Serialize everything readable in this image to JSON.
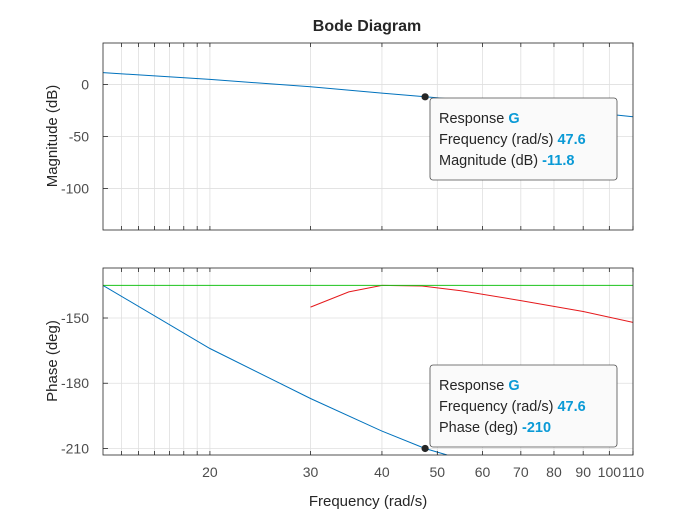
{
  "chart_data": [
    {
      "type": "line",
      "title": "Bode Diagram",
      "xlabel": "Frequency (rad/s)",
      "ylabel": "Magnitude (dB)",
      "xscale": "log",
      "xlim": [
        13,
        110
      ],
      "ylim": [
        -140,
        40
      ],
      "yticks": [
        0,
        -50,
        -100
      ],
      "grid": true,
      "series": [
        {
          "color": "#0072bd",
          "x": [
            13,
            20,
            30,
            40,
            47.6,
            60,
            80,
            110
          ],
          "y": [
            11.5,
            5,
            -2.2,
            -8.2,
            -11.8,
            -16.5,
            -23,
            -31
          ]
        }
      ],
      "datatip": {
        "x": 47.6,
        "y": -11.8,
        "line1_label": "Response",
        "line1_value": "G",
        "line2_label": "Frequency (rad/s)",
        "line2_value": "47.6",
        "line3_label": "Magnitude (dB)",
        "line3_value": "-11.8"
      }
    },
    {
      "type": "line",
      "xlabel": "Frequency (rad/s)",
      "ylabel": "Phase (deg)",
      "xscale": "log",
      "xlim": [
        13,
        110
      ],
      "ylim": [
        -213,
        -127
      ],
      "yticks": [
        -150,
        -180,
        -210
      ],
      "xticks": [
        20,
        30,
        40,
        50,
        60,
        70,
        80,
        90,
        100,
        110
      ],
      "grid": true,
      "series": [
        {
          "color": "#0072bd",
          "x": [
            13,
            20,
            30,
            40,
            47.6,
            52
          ],
          "y": [
            -135,
            -164,
            -187,
            -202,
            -210,
            -213
          ]
        },
        {
          "color": "#e5191c",
          "x": [
            30,
            35,
            40,
            47,
            55,
            70,
            90,
            110
          ],
          "y": [
            -145,
            -138,
            -135,
            -135.3,
            -137.5,
            -142,
            -147,
            -152
          ]
        },
        {
          "color": "#1bc21b",
          "x": [
            13,
            110
          ],
          "y": [
            -135,
            -135
          ]
        }
      ],
      "datatip": {
        "x": 47.6,
        "y": -210,
        "line1_label": "Response",
        "line1_value": "G",
        "line2_label": "Frequency (rad/s)",
        "line2_value": "47.6",
        "line3_label": "Phase (deg)",
        "line3_value": "-210"
      }
    }
  ]
}
